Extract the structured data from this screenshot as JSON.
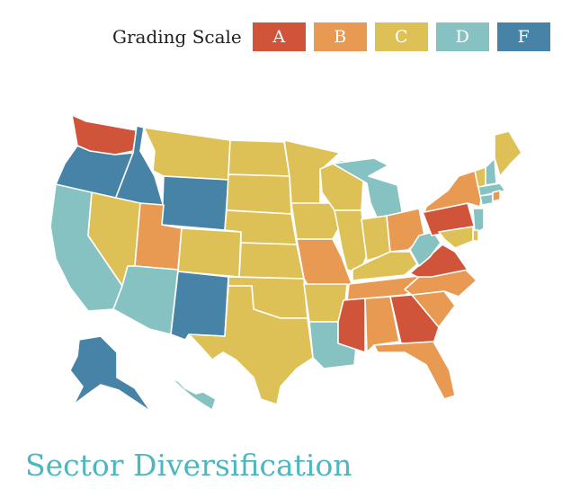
{
  "legend": {
    "label": "Grading Scale",
    "grades": [
      {
        "label": "A",
        "color": "#cf5439"
      },
      {
        "label": "B",
        "color": "#e89a52"
      },
      {
        "label": "C",
        "color": "#dec156"
      },
      {
        "label": "D",
        "color": "#86c2c2"
      },
      {
        "label": "F",
        "color": "#4783a6"
      }
    ]
  },
  "title": "Sector Diversification",
  "state_grades": {
    "WA": "A",
    "OR": "F",
    "CA": "D",
    "ID": "F",
    "NV": "C",
    "MT": "C",
    "WY": "F",
    "UT": "B",
    "AZ": "D",
    "CO": "C",
    "NM": "F",
    "ND": "C",
    "SD": "C",
    "NE": "C",
    "KS": "C",
    "OK": "C",
    "TX": "C",
    "MN": "C",
    "IA": "C",
    "MO": "B",
    "AR": "C",
    "LA": "D",
    "WI": "C",
    "IL": "C",
    "MI": "D",
    "IN": "C",
    "OH": "B",
    "KY": "C",
    "TN": "B",
    "MS": "A",
    "AL": "B",
    "GA": "A",
    "FL": "B",
    "SC": "B",
    "NC": "B",
    "VA": "A",
    "WV": "D",
    "PA": "A",
    "NY": "B",
    "VT": "C",
    "NH": "D",
    "ME": "C",
    "MA": "D",
    "CT": "D",
    "RI": "B",
    "NJ": "D",
    "DE": "C",
    "MD": "C",
    "AK": "F",
    "HI": "D"
  }
}
